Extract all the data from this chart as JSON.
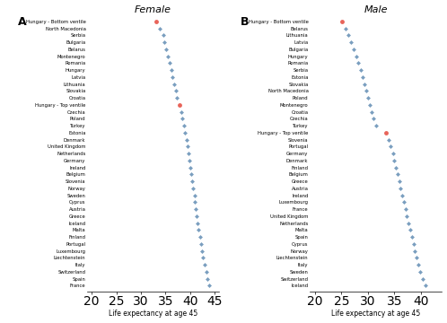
{
  "female_countries": [
    "Hungary - Bottom ventile",
    "North Macedonia",
    "Serbia",
    "Bulgaria",
    "Belarus",
    "Montenegro",
    "Romania",
    "Hungary",
    "Latvia",
    "Lithuania",
    "Slovakia",
    "Croatia",
    "Hungary - Top ventile",
    "Czechia",
    "Poland",
    "Turkey",
    "Estonia",
    "Denmark",
    "United Kingdom",
    "Netherlands",
    "Germany",
    "Ireland",
    "Belgium",
    "Slovenia",
    "Norway",
    "Sweden",
    "Cyprus",
    "Austria",
    "Greece",
    "Iceland",
    "Malta",
    "Finland",
    "Portugal",
    "Luxembourg",
    "Liechtenstein",
    "Italy",
    "Switzerland",
    "Spain",
    "France"
  ],
  "female_values": [
    33.2,
    33.8,
    34.5,
    34.8,
    35.2,
    35.5,
    35.8,
    36.2,
    36.5,
    36.8,
    37.1,
    37.4,
    37.8,
    38.2,
    38.5,
    38.8,
    39.0,
    39.3,
    39.5,
    39.7,
    39.9,
    40.1,
    40.3,
    40.5,
    40.7,
    40.9,
    41.0,
    41.2,
    41.4,
    41.6,
    41.8,
    42.0,
    42.2,
    42.5,
    42.7,
    43.0,
    43.3,
    43.6,
    44.0
  ],
  "female_highlight": [
    0,
    12
  ],
  "male_countries": [
    "Hungary - Bottom ventile",
    "Belarus",
    "Lithuania",
    "Latvia",
    "Bulgaria",
    "Hungary",
    "Romania",
    "Serbia",
    "Estonia",
    "Slovakia",
    "North Macedonia",
    "Poland",
    "Montenegro",
    "Croatia",
    "Czechia",
    "Turkey",
    "Hungary - Top ventile",
    "Slovenia",
    "Portugal",
    "Germany",
    "Denmark",
    "Finland",
    "Belgium",
    "Greece",
    "Austria",
    "Ireland",
    "Luxembourg",
    "France",
    "United Kingdom",
    "Netherlands",
    "Malta",
    "Spain",
    "Cyprus",
    "Norway",
    "Liechtenstein",
    "Italy",
    "Sweden",
    "Switzerland",
    "Iceland"
  ],
  "male_values": [
    25.2,
    25.8,
    26.3,
    26.8,
    27.3,
    27.8,
    28.2,
    28.6,
    29.0,
    29.4,
    29.7,
    30.0,
    30.3,
    30.7,
    31.1,
    31.5,
    33.5,
    34.0,
    34.3,
    34.7,
    35.0,
    35.3,
    35.6,
    35.9,
    36.2,
    36.5,
    36.8,
    37.1,
    37.4,
    37.7,
    38.0,
    38.3,
    38.6,
    38.9,
    39.2,
    39.5,
    39.9,
    40.3,
    40.8
  ],
  "male_highlight": [
    0,
    16
  ],
  "dot_color": "#7a9ebf",
  "highlight_color": "#e8645a",
  "xlabel": "Life expectancy at age 45",
  "title_female": "Female",
  "title_male": "Male",
  "label_A": "A",
  "label_B": "B",
  "xlim_female": [
    19,
    46
  ],
  "xlim_male": [
    19,
    44
  ],
  "xticks_female": [
    20,
    25,
    30,
    35,
    40,
    45
  ],
  "xticks_male": [
    20,
    25,
    30,
    35,
    40
  ]
}
